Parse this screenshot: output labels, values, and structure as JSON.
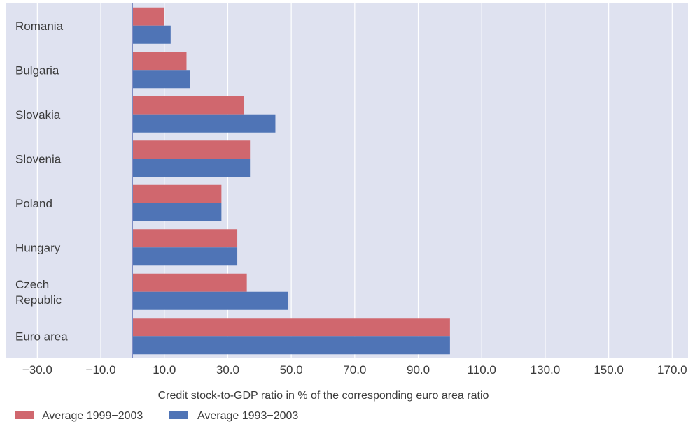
{
  "chart_data": {
    "type": "bar",
    "orientation": "horizontal",
    "categories": [
      "Romania",
      "Bulgaria",
      "Slovakia",
      "Slovenia",
      "Poland",
      "Hungary",
      "Czech Republic",
      "Euro area"
    ],
    "category_lines": [
      [
        "Romania"
      ],
      [
        "Bulgaria"
      ],
      [
        "Slovakia"
      ],
      [
        "Slovenia"
      ],
      [
        "Poland"
      ],
      [
        "Hungary"
      ],
      [
        "Czech",
        "Republic"
      ],
      [
        "Euro area"
      ]
    ],
    "series": [
      {
        "name": "Average 1999−2003",
        "color": "#d0676e",
        "values": [
          10,
          17,
          35,
          37,
          28,
          33,
          36,
          100
        ]
      },
      {
        "name": "Average 1993−2003",
        "color": "#4f74b6",
        "values": [
          12,
          18,
          45,
          37,
          28,
          33,
          49,
          100
        ]
      }
    ],
    "xlabel": "Credit stock-to-GDP ratio in % of the corresponding euro area ratio",
    "xlim": [
      -40,
      175
    ],
    "xticks": [
      -30,
      -10,
      10,
      30,
      50,
      70,
      90,
      110,
      130,
      150,
      170
    ],
    "xtick_labels": [
      "−30.0",
      "−10.0",
      "10.0",
      "30.0",
      "50.0",
      "70.0",
      "90.0",
      "110.0",
      "130.0",
      "150.0",
      "170.0"
    ],
    "grid": true,
    "legend_position": "bottom-left",
    "colors": {
      "plot_background": "#dfe2f0",
      "gridline": "#ffffff",
      "zero_line": "#7e8cc4"
    }
  }
}
